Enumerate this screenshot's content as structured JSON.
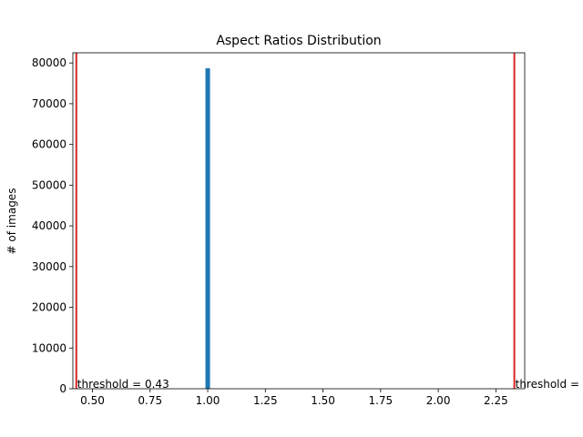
{
  "chart_data": {
    "type": "bar",
    "title": "Aspect Ratios Distribution",
    "xlabel": "",
    "ylabel": "# of images",
    "xlim": [
      0.415,
      2.375
    ],
    "ylim": [
      0,
      82500
    ],
    "xticks": [
      0.5,
      0.75,
      1.0,
      1.25,
      1.5,
      1.75,
      2.0,
      2.25
    ],
    "xtick_labels": [
      "0.50",
      "0.75",
      "1.00",
      "1.25",
      "1.50",
      "1.75",
      "2.00",
      "2.25"
    ],
    "yticks": [
      0,
      10000,
      20000,
      30000,
      40000,
      50000,
      60000,
      70000,
      80000
    ],
    "ytick_labels": [
      "0",
      "10000",
      "20000",
      "30000",
      "40000",
      "50000",
      "60000",
      "70000",
      "80000"
    ],
    "bars": [
      {
        "x": 1.0,
        "width": 0.02,
        "value": 78700
      }
    ],
    "bar_color": "#1f77b4",
    "threshold_lines": [
      {
        "x": 0.43,
        "label": "threshold = 0.43"
      },
      {
        "x": 2.33,
        "label": "threshold ="
      }
    ],
    "threshold_color": "#d62728",
    "grid": false,
    "legend": "none"
  }
}
